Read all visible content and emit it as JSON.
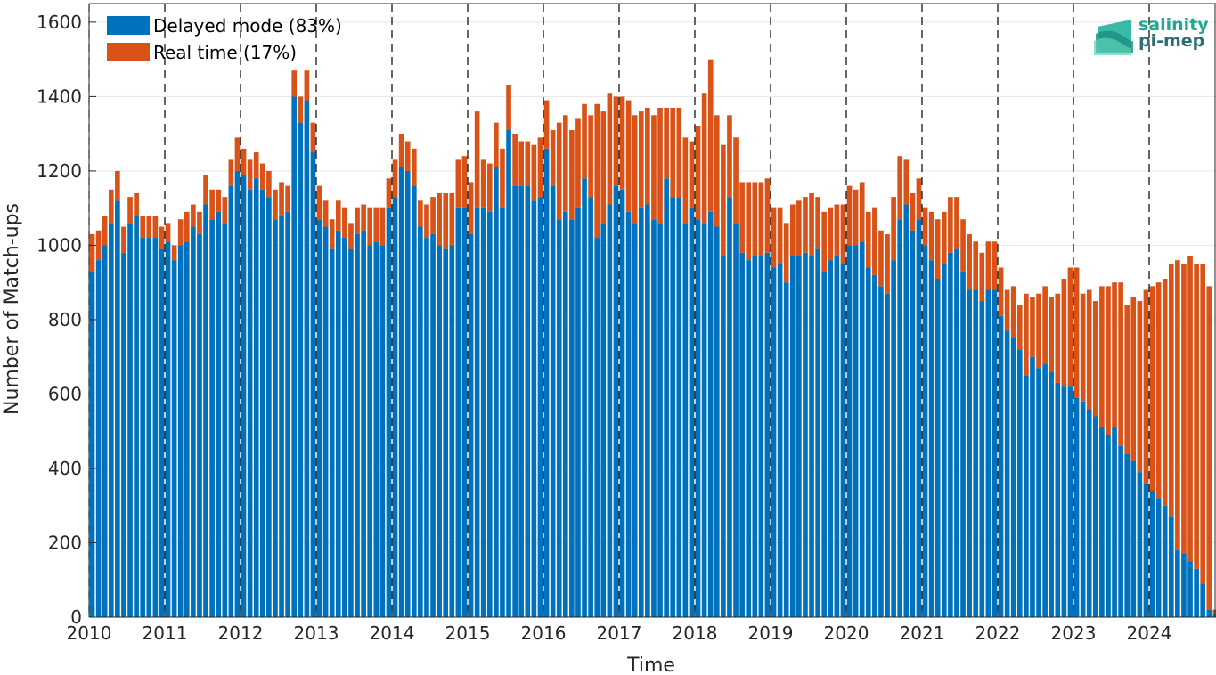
{
  "chart_data": {
    "type": "bar",
    "stacked": true,
    "xlabel": "Time",
    "ylabel": "Number of Match-ups",
    "ylim": [
      0,
      1650
    ],
    "y_ticks": [
      0,
      200,
      400,
      600,
      800,
      1000,
      1200,
      1400,
      1600
    ],
    "x_tick_labels": [
      "2010",
      "2011",
      "2012",
      "2013",
      "2014",
      "2015",
      "2016",
      "2017",
      "2018",
      "2019",
      "2020",
      "2021",
      "2022",
      "2023",
      "2024"
    ],
    "grid": true,
    "year_dividers": "dashed vertical line at each year start",
    "legend_placement": "top-left",
    "start_month": "2010-01",
    "series": [
      {
        "name": "Delayed mode (83%)",
        "color": "#0072BD",
        "values": [
          930,
          960,
          1000,
          1060,
          1120,
          980,
          1060,
          1080,
          1020,
          1020,
          1020,
          990,
          1010,
          960,
          1000,
          1010,
          1050,
          1030,
          1110,
          1070,
          1090,
          1060,
          1160,
          1200,
          1190,
          1150,
          1180,
          1150,
          1130,
          1070,
          1080,
          1090,
          1400,
          1330,
          1390,
          1250,
          1070,
          1050,
          990,
          1040,
          1020,
          990,
          1030,
          1040,
          1000,
          1010,
          1000,
          1100,
          1130,
          1210,
          1200,
          1160,
          1050,
          1020,
          1030,
          1000,
          990,
          1000,
          1100,
          1100,
          1030,
          1100,
          1100,
          1090,
          1210,
          1100,
          1310,
          1160,
          1160,
          1160,
          1120,
          1130,
          1260,
          1160,
          1070,
          1090,
          1070,
          1100,
          1180,
          1130,
          1020,
          1060,
          1110,
          1160,
          1150,
          1090,
          1060,
          1100,
          1110,
          1070,
          1060,
          1180,
          1130,
          1130,
          1060,
          1100,
          1070,
          1060,
          1090,
          1050,
          970,
          1130,
          1060,
          980,
          960,
          970,
          970,
          980,
          940,
          950,
          900,
          970,
          970,
          980,
          970,
          990,
          930,
          960,
          970,
          950,
          1000,
          1000,
          1010,
          940,
          920,
          890,
          870,
          960,
          1070,
          1110,
          1040,
          1070,
          1000,
          960,
          910,
          950,
          980,
          990,
          930,
          880,
          880,
          850,
          880,
          880,
          810,
          770,
          750,
          720,
          650,
          700,
          670,
          680,
          660,
          630,
          620,
          620,
          590,
          580,
          560,
          540,
          510,
          490,
          510,
          460,
          440,
          420,
          390,
          360,
          340,
          320,
          300,
          270,
          180,
          170,
          150,
          130,
          90,
          20,
          10
        ]
      },
      {
        "name": "Real time (17%)",
        "color": "#D95319",
        "values": [
          100,
          80,
          80,
          90,
          80,
          70,
          70,
          60,
          60,
          60,
          60,
          60,
          50,
          40,
          70,
          80,
          60,
          60,
          80,
          80,
          60,
          70,
          70,
          90,
          70,
          80,
          70,
          70,
          70,
          80,
          90,
          70,
          70,
          70,
          80,
          80,
          90,
          70,
          80,
          80,
          80,
          70,
          70,
          70,
          100,
          90,
          100,
          80,
          100,
          90,
          80,
          100,
          70,
          90,
          100,
          140,
          150,
          140,
          130,
          140,
          140,
          260,
          130,
          130,
          120,
          160,
          120,
          140,
          120,
          120,
          150,
          160,
          130,
          150,
          260,
          260,
          240,
          240,
          200,
          220,
          360,
          300,
          300,
          240,
          250,
          300,
          290,
          260,
          260,
          280,
          310,
          190,
          240,
          240,
          230,
          180,
          250,
          350,
          410,
          300,
          300,
          220,
          230,
          190,
          210,
          200,
          200,
          200,
          160,
          150,
          160,
          140,
          150,
          150,
          170,
          140,
          160,
          140,
          140,
          160,
          160,
          150,
          160,
          150,
          180,
          150,
          160,
          170,
          170,
          120,
          100,
          110,
          100,
          130,
          160,
          140,
          150,
          140,
          140,
          150,
          130,
          130,
          130,
          130,
          130,
          110,
          140,
          120,
          220,
          160,
          200,
          210,
          200,
          240,
          290,
          320,
          350,
          290,
          320,
          310,
          380,
          400,
          390,
          440,
          400,
          440,
          460,
          520,
          550,
          580,
          610,
          680,
          780,
          780,
          820,
          820,
          860,
          870,
          10
        ]
      }
    ]
  },
  "legend": {
    "delayed_label": "Delayed mode (83%)",
    "realtime_label": "Real time (17%)"
  },
  "logo": {
    "line1": "salinity",
    "line2": "pi-mep"
  }
}
